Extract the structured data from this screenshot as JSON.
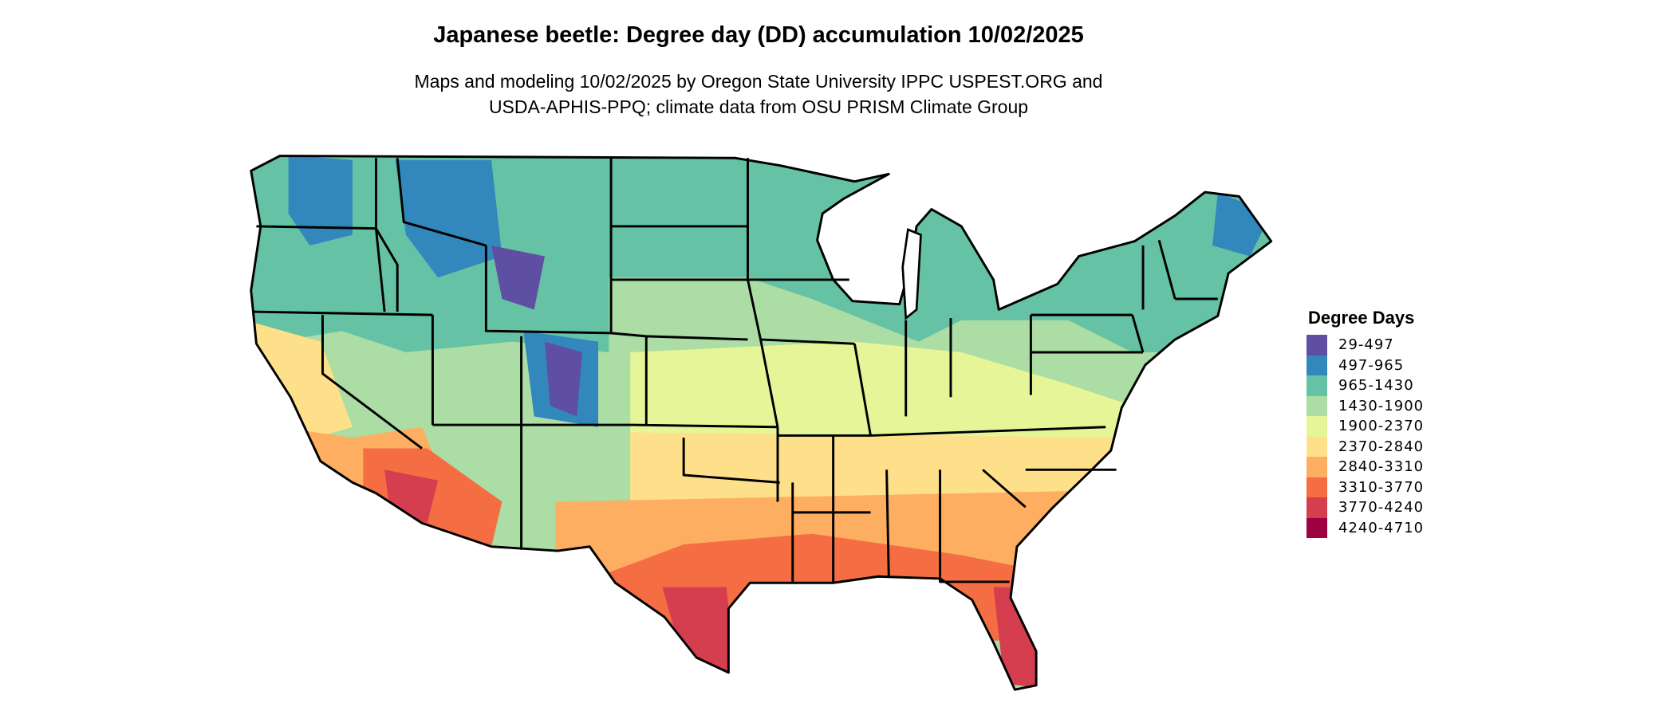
{
  "title": "Japanese beetle: Degree day (DD) accumulation 10/02/2025",
  "subtitle_line1": "Maps and modeling 10/02/2025 by Oregon State University IPPC USPEST.ORG and",
  "subtitle_line2": "USDA-APHIS-PPQ; climate data from OSU PRISM Climate Group",
  "legend": {
    "title": "Degree Days",
    "placement": "right",
    "items": [
      {
        "label": "29-497",
        "color": "#5E4FA2"
      },
      {
        "label": "497-965",
        "color": "#3288BD"
      },
      {
        "label": "965-1430",
        "color": "#66C2A5"
      },
      {
        "label": "1430-1900",
        "color": "#ABDDA4"
      },
      {
        "label": "1900-2370",
        "color": "#E6F598"
      },
      {
        "label": "2370-2840",
        "color": "#FEE08B"
      },
      {
        "label": "2840-3310",
        "color": "#FDAE61"
      },
      {
        "label": "3310-3770",
        "color": "#F46D43"
      },
      {
        "label": "3770-4240",
        "color": "#D53E4F"
      },
      {
        "label": "4240-4710",
        "color": "#9E0142"
      }
    ]
  },
  "map": {
    "region": "Contiguous United States",
    "border_color": "#000000"
  }
}
